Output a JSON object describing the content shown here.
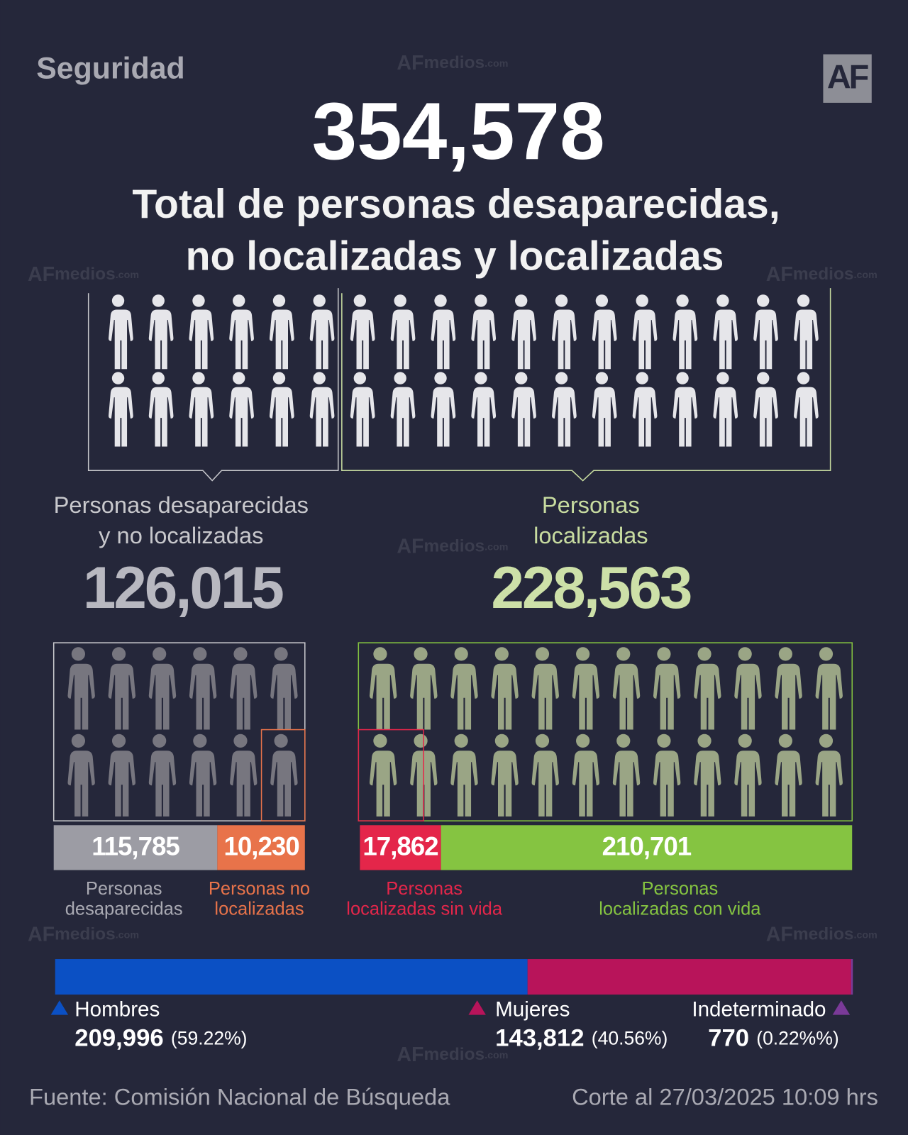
{
  "header": {
    "section": "Seguridad",
    "logo": "AF",
    "watermark": {
      "brand": "AF",
      "word": "medios",
      "domain": ".com"
    }
  },
  "total": {
    "label": "354,578",
    "title_lines": [
      "Total de personas desaparecidas,",
      "no localizadas y localizadas"
    ]
  },
  "groups": [
    {
      "name_lines": [
        "Personas desaparecidas",
        "y no localizadas"
      ],
      "label": "126,015",
      "segments": [
        {
          "label": "115,785",
          "name_lines": [
            "Personas",
            "desaparecidas"
          ],
          "color": "#9c9ca4"
        },
        {
          "label": "10,230",
          "name_lines": [
            "Personas no",
            "localizadas"
          ],
          "color": "#e8734a"
        }
      ]
    },
    {
      "name_lines": [
        "Personas",
        "localizadas"
      ],
      "label": "228,563",
      "segments": [
        {
          "label": "17,862",
          "name_lines": [
            "Personas",
            "localizadas sin vida"
          ],
          "color": "#e4264a"
        },
        {
          "label": "210,701",
          "name_lines": [
            "Personas",
            "localizadas con vida"
          ],
          "color": "#85c441"
        }
      ]
    }
  ],
  "gender": [
    {
      "name": "Hombres",
      "value_label": "209,996",
      "percent": 59.22,
      "percent_label": "(59.22%)",
      "color": "#0b50c4"
    },
    {
      "name": "Mujeres",
      "value_label": "143,812",
      "percent": 40.56,
      "percent_label": "(40.56%)",
      "color": "#b8145a"
    },
    {
      "name": "Indeterminado",
      "value_label": "770",
      "percent": 0.22,
      "percent_label": "(0.22%%)",
      "color": "#7a3a98"
    }
  ],
  "footer": {
    "source": "Fuente: Comisión Nacional de Búsqueda",
    "cut": "Corte al 27/03/2025 10:09 hrs"
  }
}
